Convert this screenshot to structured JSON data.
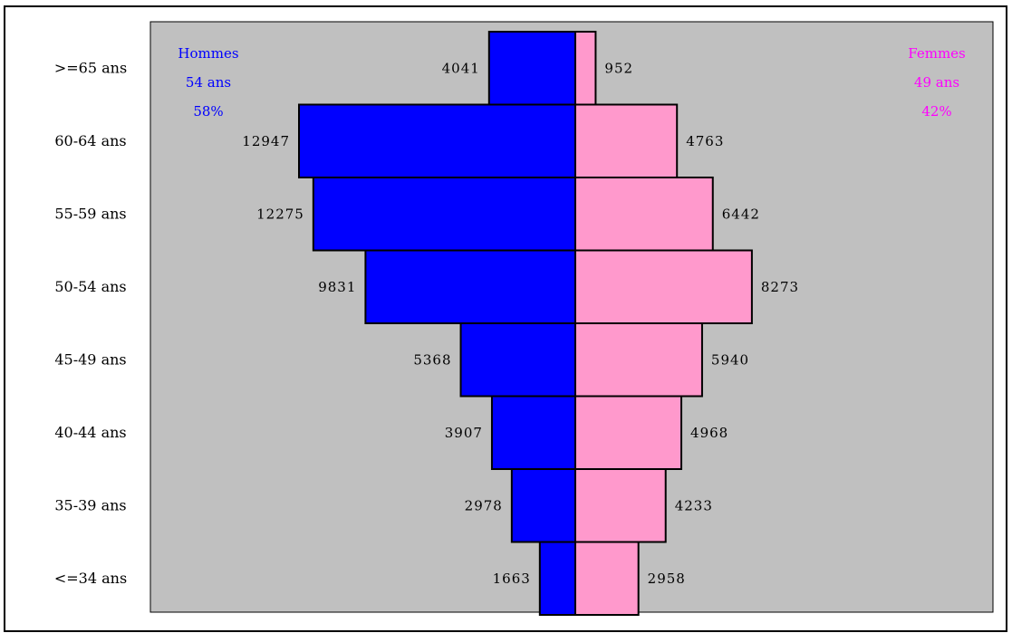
{
  "chart_data": {
    "type": "bar",
    "orientation": "horizontal-pyramid",
    "categories": [
      ">=65 ans",
      "60-64 ans",
      "55-59 ans",
      "50-54 ans",
      "45-49 ans",
      "40-44 ans",
      "35-39 ans",
      "<=34 ans"
    ],
    "series": [
      {
        "name": "Hommes",
        "side": "left",
        "color": "#0000ff",
        "values": [
          4041,
          12947,
          12275,
          9831,
          5368,
          3907,
          2978,
          1663
        ],
        "legend_lines": [
          "Hommes",
          "54 ans",
          "58%"
        ]
      },
      {
        "name": "Femmes",
        "side": "right",
        "color": "#ff99cc",
        "values": [
          952,
          4763,
          6442,
          8273,
          5940,
          4968,
          4233,
          2958
        ],
        "legend_lines": [
          "Femmes",
          "49 ans",
          "42%"
        ]
      }
    ],
    "value_labels": {
      "Hommes": [
        "4041",
        "12947",
        "12275",
        "9831",
        "5368",
        "3907",
        "2978",
        "1663"
      ],
      "Femmes": [
        "952",
        "4763",
        "6442",
        "8273",
        "5940",
        "4968",
        "4233",
        "2958"
      ]
    },
    "plot_background": "#c0c0c0",
    "grid": false,
    "legend_placement": "top-left and top-right inside plot",
    "men_text_color": "#0000ff",
    "women_text_color": "#ff00ff"
  }
}
